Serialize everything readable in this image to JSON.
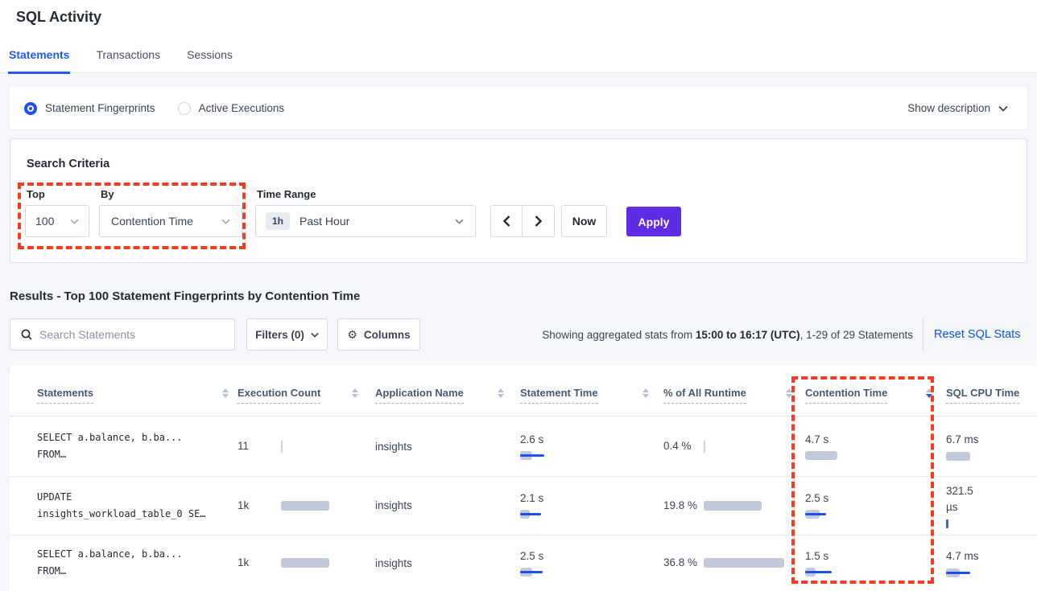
{
  "page": {
    "title": "SQL Activity"
  },
  "tabs": [
    {
      "label": "Statements",
      "active": true
    },
    {
      "label": "Transactions",
      "active": false
    },
    {
      "label": "Sessions",
      "active": false
    }
  ],
  "view_toggle": {
    "options": [
      {
        "label": "Statement Fingerprints",
        "selected": true
      },
      {
        "label": "Active Executions",
        "selected": false
      }
    ],
    "show_description": "Show description"
  },
  "search_criteria": {
    "heading": "Search Criteria",
    "top": {
      "label": "Top",
      "value": "100"
    },
    "by": {
      "label": "By",
      "value": "Contention Time"
    },
    "time_range": {
      "label": "Time Range",
      "badge": "1h",
      "value": "Past Hour"
    },
    "now_label": "Now",
    "apply_label": "Apply"
  },
  "results": {
    "heading": "Results - Top 100 Statement Fingerprints by Contention Time",
    "search_placeholder": "Search Statements",
    "filters_label": "Filters (0)",
    "columns_label": "Columns",
    "showing_prefix": "Showing aggregated stats from ",
    "showing_bold": "15:00 to 16:17 (UTC)",
    "showing_suffix": ", 1-29 of 29 Statements",
    "reset_link": "Reset SQL Stats"
  },
  "table": {
    "columns": [
      "Statements",
      "Execution Count",
      "Application Name",
      "Statement Time",
      "% of All Runtime",
      "Contention Time",
      "SQL CPU Time"
    ],
    "sorted_column": "Contention Time",
    "sort_direction": "desc",
    "rows": [
      {
        "statement_line1": "SELECT a.balance, b.ba...",
        "statement_line2": "FROM…",
        "execution_count": "11",
        "application": "insights",
        "statement_time": "2.6 s",
        "pct_runtime": "0.4 %",
        "contention_time": "4.7 s",
        "sql_cpu_time": "6.7 ms",
        "bars": {
          "execution": {
            "tick": "gray"
          },
          "statement": {
            "gray": 15,
            "blue": 30
          },
          "pct": {
            "tick": "gray"
          },
          "contention": {
            "gray": 40
          },
          "cpu": {
            "gray": 30
          }
        }
      },
      {
        "statement_line1": "UPDATE",
        "statement_line2": "insights_workload_table_0 SE…",
        "execution_count": "1k",
        "application": "insights",
        "statement_time": "2.1 s",
        "pct_runtime": "19.8 %",
        "contention_time": "2.5 s",
        "sql_cpu_time": "321.5 µs",
        "bars": {
          "execution": {
            "gray": 60,
            "h": 12
          },
          "statement": {
            "gray": 12,
            "blue": 26
          },
          "pct": {
            "gray": 72,
            "h": 12
          },
          "contention": {
            "gray": 18,
            "blue": 26
          },
          "cpu": {
            "tick": "blue"
          }
        }
      },
      {
        "statement_line1": "SELECT a.balance, b.ba...",
        "statement_line2": "FROM…",
        "execution_count": "1k",
        "application": "insights",
        "statement_time": "2.5 s",
        "pct_runtime": "36.8 %",
        "contention_time": "1.5 s",
        "sql_cpu_time": "4.7 ms",
        "bars": {
          "execution": {
            "gray": 60,
            "h": 12
          },
          "statement": {
            "gray": 15,
            "blue": 28
          },
          "pct": {
            "gray": 100,
            "h": 12
          },
          "contention": {
            "gray": 13,
            "blue": 33
          },
          "cpu": {
            "gray": 17,
            "blue": 30
          }
        }
      }
    ]
  },
  "colors": {
    "accent_blue": "#1d4ff2",
    "apply_purple": "#5e2ce5",
    "annotation_red": "#fa3a20",
    "bar_gray": "#c2c9da"
  }
}
